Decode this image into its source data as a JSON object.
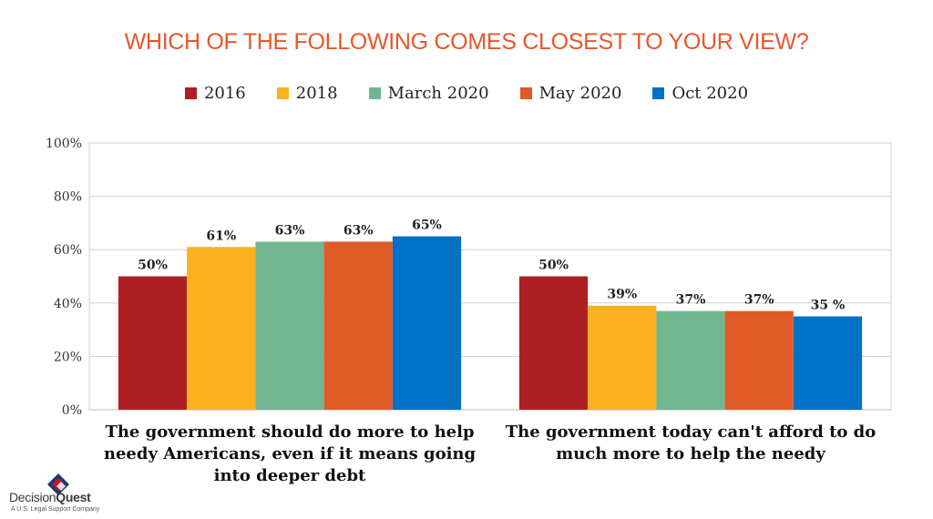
{
  "chart_data": {
    "type": "bar",
    "title": "WHICH OF THE FOLLOWING COMES CLOSEST TO YOUR VIEW?",
    "categories": [
      "The government should do more to help needy Americans, even if it means going into deeper debt",
      "The government today can't afford to do much more to help the needy"
    ],
    "series": [
      {
        "name": "2016",
        "color": "#AE1F24",
        "values": [
          50,
          50
        ],
        "labels": [
          "50%",
          "50%"
        ]
      },
      {
        "name": "2018",
        "color": "#F9B11E",
        "values": [
          61,
          39
        ],
        "labels": [
          "61%",
          "39%"
        ]
      },
      {
        "name": "March 2020",
        "color": "#72B68F",
        "values": [
          63,
          37
        ],
        "labels": [
          "63%",
          "37%"
        ]
      },
      {
        "name": "May 2020",
        "color": "#E05A27",
        "values": [
          63,
          37
        ],
        "labels": [
          "63%",
          "37%"
        ]
      },
      {
        "name": "Oct 2020",
        "color": "#0071C5",
        "values": [
          65,
          35
        ],
        "labels": [
          "65%",
          "35 %"
        ]
      }
    ],
    "yticks": [
      "0%",
      "20%",
      "40%",
      "60%",
      "80%",
      "100%"
    ],
    "ylim": [
      0,
      100
    ],
    "grid": true,
    "legend": "top"
  },
  "logo": {
    "name_part1": "Decision",
    "name_part2": "Quest",
    "tagline": "A U.S. Legal Support Company"
  }
}
